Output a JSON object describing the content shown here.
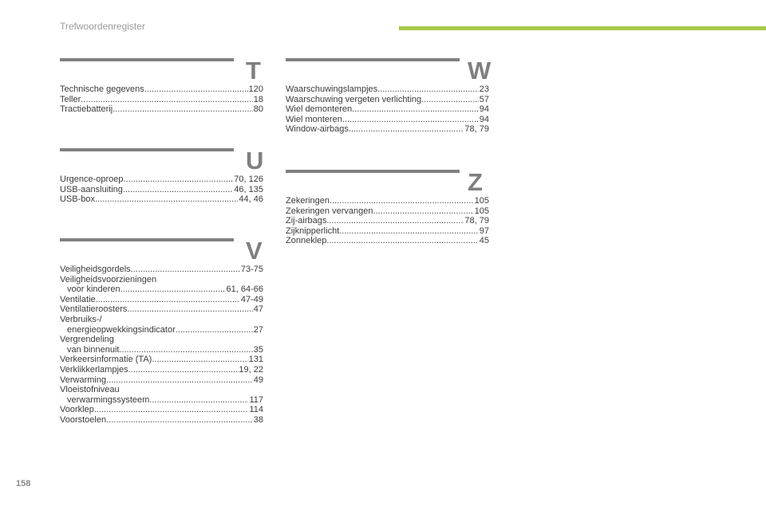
{
  "header": {
    "title": "Trefwoordenregister",
    "accent": "#a8c84a"
  },
  "page_number": "158",
  "sections": [
    {
      "letter": "T",
      "entries": [
        {
          "term": "Technische gegevens",
          "pages": "120"
        },
        {
          "term": "Teller",
          "pages": "18"
        },
        {
          "term": "Tractiebatterij",
          "pages": "80"
        }
      ]
    },
    {
      "letter": "U",
      "entries": [
        {
          "term": "Urgence-oproep",
          "pages": "70, 126"
        },
        {
          "term": "USB-aansluiting",
          "pages": "46, 135"
        },
        {
          "term": "USB-box",
          "pages": "44, 46"
        }
      ]
    },
    {
      "letter": "V",
      "entries": [
        {
          "term": "Veiligheidsgordels",
          "pages": "73-75"
        },
        {
          "term": "Veiligheidsvoorzieningen",
          "sub": "voor kinderen",
          "pages": "61, 64-66"
        },
        {
          "term": "Ventilatie",
          "pages": "47-49"
        },
        {
          "term": "Ventilatieroosters",
          "pages": "47"
        },
        {
          "term": "Verbruiks-/",
          "sub": "energieopwekkingsindicator",
          "pages": "27"
        },
        {
          "term": "Vergrendeling",
          "sub": "van binnenuit",
          "pages": "35"
        },
        {
          "term": "Verkeersinformatie (TA)",
          "pages": "131"
        },
        {
          "term": "Verklikkerlampjes",
          "pages": "19, 22"
        },
        {
          "term": "Verwarming",
          "pages": "49"
        },
        {
          "term": "Vloeistofniveau",
          "sub": "verwarmingssysteem.",
          "pages": "117"
        },
        {
          "term": "Voorklep",
          "pages": "114"
        },
        {
          "term": "Voorstoelen",
          "pages": "38"
        }
      ]
    },
    {
      "letter": "W",
      "entries": [
        {
          "term": "Waarschuwingslampjes",
          "pages": "23"
        },
        {
          "term": "Waarschuwing vergeten verlichting",
          "pages": "57"
        },
        {
          "term": "Wiel demonteren",
          "pages": "94"
        },
        {
          "term": "Wiel monteren",
          "pages": "94"
        },
        {
          "term": "Window-airbags",
          "pages": "78, 79"
        }
      ]
    },
    {
      "letter": "Z",
      "entries": [
        {
          "term": "Zekeringen",
          "pages": "105"
        },
        {
          "term": "Zekeringen vervangen",
          "pages": "105"
        },
        {
          "term": "Zij-airbags",
          "pages": "78, 79"
        },
        {
          "term": "Zijknipperlicht",
          "pages": "97"
        },
        {
          "term": "Zonneklep",
          "pages": "45"
        }
      ]
    }
  ]
}
